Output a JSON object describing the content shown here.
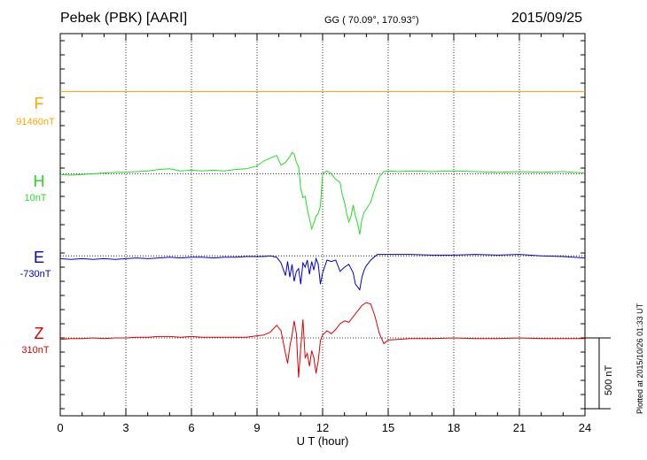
{
  "header": {
    "station": "Pebek (PBK)  [AARI]",
    "coords": "GG ( 70.09°, 170.93°)",
    "date": "2015/09/25"
  },
  "footer": {
    "plotted": "Plotted at 2015/10/26 01:33 UT",
    "scale": "500 nT"
  },
  "chart_data": {
    "type": "line",
    "title": "Pebek (PBK)  [AARI]",
    "xlabel": "U T (hour)",
    "ylabel": "",
    "xlim": [
      0,
      24
    ],
    "x_ticks": [
      "0",
      "3",
      "6",
      "9",
      "12",
      "15",
      "18",
      "21",
      "24"
    ],
    "y_units": "nT (offset from baseline)",
    "ylim": [
      -550,
      2150
    ],
    "scale_bar_nT": 500,
    "series": [
      {
        "name": "F",
        "baseline_label": "91460nT",
        "color": "#ffa500",
        "offset": 1740,
        "x": [
          0,
          3,
          6,
          9,
          12,
          15,
          18,
          21,
          24
        ],
        "values": [
          0,
          0,
          0,
          0,
          0,
          0,
          0,
          0,
          0
        ]
      },
      {
        "name": "H",
        "baseline_label": "10nT",
        "color": "#22dd22",
        "offset": 1160,
        "x": [
          0,
          0.5,
          1,
          1.5,
          2,
          2.5,
          3,
          3.5,
          4,
          4.5,
          5,
          5.5,
          6,
          6.5,
          7,
          7.5,
          8,
          8.5,
          9,
          9.3,
          9.6,
          9.9,
          10.1,
          10.3,
          10.5,
          10.6,
          10.7,
          10.8,
          10.9,
          11.0,
          11.1,
          11.2,
          11.3,
          11.4,
          11.5,
          11.6,
          11.7,
          11.8,
          11.9,
          12.0,
          12.2,
          12.4,
          12.6,
          12.8,
          12.9,
          13.0,
          13.1,
          13.2,
          13.3,
          13.4,
          13.5,
          13.6,
          13.7,
          13.8,
          13.9,
          14.0,
          14.2,
          14.4,
          14.6,
          14.8,
          15.0,
          15.5,
          16,
          17,
          18,
          19,
          20,
          21,
          22,
          23,
          24
        ],
        "values": [
          -5,
          -10,
          -5,
          0,
          5,
          10,
          10,
          15,
          20,
          30,
          35,
          20,
          25,
          20,
          25,
          20,
          30,
          35,
          55,
          90,
          110,
          130,
          60,
          80,
          120,
          150,
          140,
          80,
          50,
          -100,
          -170,
          -160,
          -250,
          -320,
          -390,
          -350,
          -300,
          -280,
          -230,
          0,
          20,
          0,
          -40,
          -60,
          -150,
          -200,
          -280,
          -340,
          -300,
          -220,
          -300,
          -350,
          -430,
          -320,
          -270,
          -250,
          -200,
          -100,
          -20,
          15,
          20,
          15,
          20,
          15,
          20,
          15,
          10,
          15,
          10,
          15,
          5
        ]
      },
      {
        "name": "E",
        "baseline_label": "-730nT",
        "color": "#0000cc",
        "offset": 580,
        "x": [
          0,
          0.5,
          1,
          1.5,
          2,
          2.5,
          3,
          3.5,
          4,
          4.5,
          5,
          5.5,
          6,
          6.5,
          7,
          7.5,
          8,
          8.5,
          9,
          9.3,
          9.6,
          9.9,
          10.1,
          10.3,
          10.4,
          10.5,
          10.6,
          10.7,
          10.8,
          10.9,
          11.0,
          11.1,
          11.2,
          11.3,
          11.4,
          11.5,
          11.6,
          11.7,
          11.8,
          11.9,
          12.0,
          12.2,
          12.4,
          12.6,
          12.8,
          13.0,
          13.2,
          13.4,
          13.5,
          13.6,
          13.7,
          13.8,
          13.9,
          14.0,
          14.2,
          14.5,
          15.0,
          16,
          17,
          18,
          19,
          20,
          21,
          22,
          23,
          24
        ],
        "values": [
          -20,
          -25,
          -20,
          -25,
          -20,
          -25,
          -20,
          -15,
          -20,
          -15,
          -10,
          -15,
          -10,
          -10,
          -15,
          -10,
          -10,
          -5,
          -5,
          -5,
          0,
          -10,
          -50,
          -140,
          -40,
          -150,
          -60,
          -180,
          -110,
          -90,
          -200,
          -50,
          -80,
          -30,
          -130,
          -40,
          -100,
          -20,
          -60,
          -200,
          -120,
          -30,
          -40,
          -30,
          -110,
          -80,
          -60,
          -120,
          -200,
          -220,
          -240,
          -150,
          -100,
          -70,
          -30,
          10,
          10,
          10,
          5,
          5,
          10,
          5,
          10,
          0,
          -5,
          -15
        ]
      },
      {
        "name": "Z",
        "baseline_label": "310nT",
        "color": "#dd0000",
        "offset": 0,
        "x": [
          0,
          0.5,
          1,
          1.5,
          2,
          2.5,
          3,
          3.5,
          4,
          4.5,
          5,
          5.5,
          6,
          6.5,
          7,
          7.5,
          8,
          8.5,
          9,
          9.3,
          9.6,
          9.9,
          10.1,
          10.2,
          10.3,
          10.4,
          10.5,
          10.6,
          10.7,
          10.8,
          10.9,
          11.0,
          11.1,
          11.2,
          11.3,
          11.4,
          11.5,
          11.6,
          11.7,
          11.8,
          11.9,
          12.0,
          12.2,
          12.4,
          12.6,
          12.8,
          13.0,
          13.2,
          13.4,
          13.6,
          13.8,
          14.0,
          14.2,
          14.4,
          14.6,
          14.8,
          15.0,
          15.5,
          16,
          17,
          18,
          19,
          20,
          21,
          22,
          23,
          24
        ],
        "values": [
          -10,
          -5,
          -5,
          0,
          -5,
          0,
          0,
          5,
          5,
          10,
          10,
          5,
          10,
          5,
          5,
          5,
          5,
          5,
          15,
          20,
          40,
          90,
          50,
          -30,
          -110,
          -180,
          -60,
          20,
          120,
          30,
          -280,
          -70,
          130,
          -140,
          -110,
          -200,
          -90,
          -140,
          -250,
          -160,
          -20,
          20,
          50,
          30,
          60,
          100,
          120,
          110,
          150,
          190,
          230,
          250,
          240,
          150,
          30,
          -40,
          -15,
          -10,
          -5,
          -5,
          0,
          -5,
          -5,
          0,
          -5,
          -5,
          -5
        ]
      }
    ]
  }
}
